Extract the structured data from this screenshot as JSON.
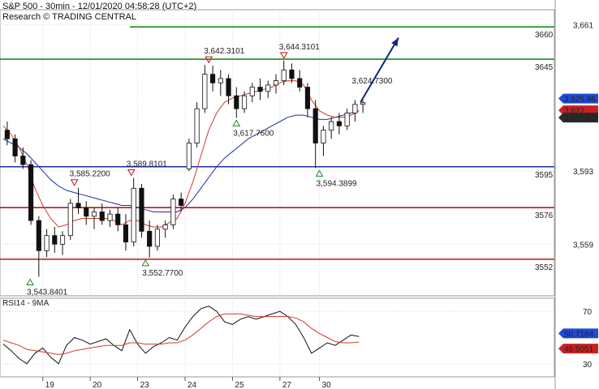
{
  "header": {
    "title": "S&P 500 - 30min - 12/01/2020 04:58:28 (UTC+2)",
    "research": "Research © TRADING CENTRAL"
  },
  "colors": {
    "green": "#1a8c1a",
    "blue": "#1f2fa0",
    "red": "#c0141e",
    "arrow": "#0d2a7a",
    "ma_red": "#d33a2e",
    "ma_blue": "#1f2fa0",
    "grid": "#d8d8d8",
    "blue_tag": "#1f4bd6",
    "red_tag": "#cc2020",
    "dark_tag": "#2a2a2a"
  },
  "chart_data": [
    {
      "type": "candlestick",
      "title": "S&P 500 - 30min",
      "ylim": [
        3535,
        3668
      ],
      "x_tick_labels": [
        "19",
        "20",
        "23",
        "24",
        "25",
        "27",
        "30"
      ],
      "x_tick_positions": [
        5,
        11,
        17,
        23,
        29,
        35,
        40
      ],
      "x_range": [
        0,
        46
      ],
      "y_axis_ticks": [
        3661,
        3593,
        3559
      ],
      "y_axis_tick_labels": [
        "3,661",
        "3,593",
        "3,559"
      ],
      "levels": [
        {
          "value": 3660,
          "label": "3660",
          "color": "green"
        },
        {
          "value": 3645,
          "label": "3645",
          "color": "green"
        },
        {
          "value": 3595,
          "label": "3595",
          "color": "blue"
        },
        {
          "value": 3576,
          "label": "3576",
          "color": "red"
        },
        {
          "value": 3552,
          "label": "3552",
          "color": "red"
        }
      ],
      "price_tags": [
        {
          "value": 3625.96,
          "label": "3,625.96",
          "color": "blue_tag"
        },
        {
          "value": 3622,
          "label": "3,622",
          "color": "red_tag"
        },
        {
          "value": 3621.63,
          "label": "3,621.63",
          "color": "dark_tag"
        }
      ],
      "annotations": [
        {
          "label": "3,543.8401",
          "x": 3.4,
          "y": 3543.84,
          "kind": "low"
        },
        {
          "label": "3,585.2200",
          "x": 9.0,
          "y": 3585.22,
          "kind": "high"
        },
        {
          "label": "3,589.8101",
          "x": 16.2,
          "y": 3589.81,
          "kind": "high"
        },
        {
          "label": "3,552.7700",
          "x": 18.0,
          "y": 3552.77,
          "kind": "low"
        },
        {
          "label": "3,642.3101",
          "x": 26.0,
          "y": 3642.31,
          "kind": "high"
        },
        {
          "label": "3,617.7600",
          "x": 29.5,
          "y": 3617.76,
          "kind": "low"
        },
        {
          "label": "3,644.3101",
          "x": 35.5,
          "y": 3644.31,
          "kind": "high"
        },
        {
          "label": "3,594.3899",
          "x": 40.0,
          "y": 3594.39,
          "kind": "low"
        },
        {
          "label": "3,624.7300",
          "x": 44.5,
          "y": 3624.73,
          "kind": "last"
        }
      ],
      "forecast_arrow": {
        "from": [
          45.2,
          3625
        ],
        "to": [
          50.0,
          3655
        ]
      },
      "candles": [
        [
          3612,
          3616,
          3605,
          3608
        ],
        [
          3608,
          3610,
          3597,
          3600
        ],
        [
          3600,
          3604,
          3594,
          3596
        ],
        [
          3596,
          3598,
          3568,
          3570
        ],
        [
          3570,
          3572,
          3543.84,
          3556
        ],
        [
          3556,
          3566,
          3553,
          3563
        ],
        [
          3563,
          3567,
          3555,
          3559
        ],
        [
          3559,
          3565,
          3554,
          3563
        ],
        [
          3563,
          3580,
          3561,
          3578
        ],
        [
          3578,
          3585.22,
          3573,
          3576
        ],
        [
          3576,
          3579,
          3568,
          3572
        ],
        [
          3572,
          3576,
          3566,
          3574
        ],
        [
          3574,
          3578,
          3568,
          3570
        ],
        [
          3570,
          3575,
          3567,
          3573
        ],
        [
          3573,
          3576,
          3565,
          3568
        ],
        [
          3568,
          3573,
          3556,
          3560
        ],
        [
          3560,
          3589.81,
          3558,
          3585
        ],
        [
          3585,
          3587,
          3562,
          3565
        ],
        [
          3565,
          3570,
          3552.77,
          3558
        ],
        [
          3558,
          3568,
          3556,
          3566
        ],
        [
          3566,
          3570,
          3562,
          3568
        ],
        [
          3568,
          3582,
          3566,
          3580
        ],
        [
          3580,
          3583,
          3574,
          3577
        ],
        [
          3594,
          3608,
          3593,
          3606
        ],
        [
          3606,
          3625,
          3604,
          3622
        ],
        [
          3622,
          3642.31,
          3620,
          3638
        ],
        [
          3638,
          3642,
          3630,
          3634
        ],
        [
          3634,
          3640,
          3628,
          3636
        ],
        [
          3636,
          3638,
          3624,
          3628
        ],
        [
          3628,
          3632,
          3617.76,
          3622
        ],
        [
          3622,
          3630,
          3620,
          3628
        ],
        [
          3628,
          3634,
          3625,
          3632
        ],
        [
          3632,
          3636,
          3626,
          3630
        ],
        [
          3630,
          3635,
          3627,
          3633
        ],
        [
          3633,
          3638,
          3629,
          3635
        ],
        [
          3635,
          3644.31,
          3633,
          3640
        ],
        [
          3640,
          3643,
          3634,
          3636
        ],
        [
          3636,
          3640,
          3630,
          3632
        ],
        [
          3632,
          3634,
          3618,
          3622
        ],
        [
          3622,
          3626,
          3594.39,
          3606
        ],
        [
          3606,
          3614,
          3600,
          3612
        ],
        [
          3612,
          3618,
          3608,
          3616
        ],
        [
          3616,
          3620,
          3610,
          3614
        ],
        [
          3614,
          3622,
          3612,
          3620
        ],
        [
          3620,
          3626,
          3616,
          3624
        ],
        [
          3624,
          3626,
          3620,
          3624.73
        ]
      ],
      "ma_fast": [
        3614,
        3610,
        3604,
        3596,
        3585,
        3577,
        3571,
        3567,
        3568,
        3570,
        3571,
        3571,
        3571,
        3571,
        3570,
        3568,
        3570,
        3570,
        3568,
        3567,
        3567,
        3569,
        3571,
        3578,
        3588,
        3600,
        3612,
        3620,
        3625,
        3627,
        3628,
        3629,
        3630,
        3631,
        3632,
        3634,
        3635,
        3635,
        3633,
        3626,
        3621,
        3619,
        3618,
        3618,
        3619,
        3621
      ],
      "ma_slow": [
        3608,
        3606,
        3604,
        3601,
        3597,
        3593,
        3589,
        3586,
        3584,
        3583,
        3582,
        3581,
        3580,
        3579,
        3578,
        3577,
        3577,
        3576,
        3575,
        3574,
        3574,
        3574,
        3574,
        3576,
        3580,
        3585,
        3590,
        3595,
        3599,
        3602,
        3605,
        3608,
        3610,
        3612,
        3614,
        3616,
        3618,
        3619,
        3619,
        3618,
        3617,
        3617,
        3618,
        3619,
        3620,
        3621
      ]
    },
    {
      "type": "line",
      "title": "RSI14 - 9MA",
      "ylim": [
        20,
        80
      ],
      "y_axis_ticks": [
        70,
        30
      ],
      "y_axis_tick_labels": [
        "70",
        "30"
      ],
      "price_tags": [
        {
          "value": 50.7184,
          "label": "50.7184",
          "color": "blue_tag"
        },
        {
          "value": 46.5051,
          "label": "46.5051",
          "color": "red_tag"
        }
      ],
      "series": [
        {
          "name": "RSI14",
          "color": "#111111",
          "values": [
            45,
            40,
            34,
            30,
            38,
            42,
            35,
            30,
            44,
            50,
            48,
            45,
            47,
            49,
            44,
            40,
            56,
            45,
            38,
            43,
            46,
            50,
            48,
            58,
            66,
            72,
            74,
            70,
            62,
            60,
            64,
            66,
            64,
            66,
            68,
            70,
            66,
            60,
            50,
            38,
            42,
            46,
            44,
            48,
            52,
            50.72
          ]
        },
        {
          "name": "9MA",
          "color": "#d33a2e",
          "values": [
            48,
            46,
            44,
            41,
            40,
            39,
            38,
            37,
            38,
            40,
            41,
            42,
            43,
            44,
            44,
            44,
            46,
            46,
            45,
            45,
            45,
            46,
            46,
            48,
            52,
            57,
            62,
            66,
            68,
            68,
            68,
            67,
            66,
            66,
            66,
            66,
            66,
            65,
            62,
            57,
            53,
            50,
            47,
            46,
            46,
            46.51
          ]
        }
      ]
    }
  ]
}
